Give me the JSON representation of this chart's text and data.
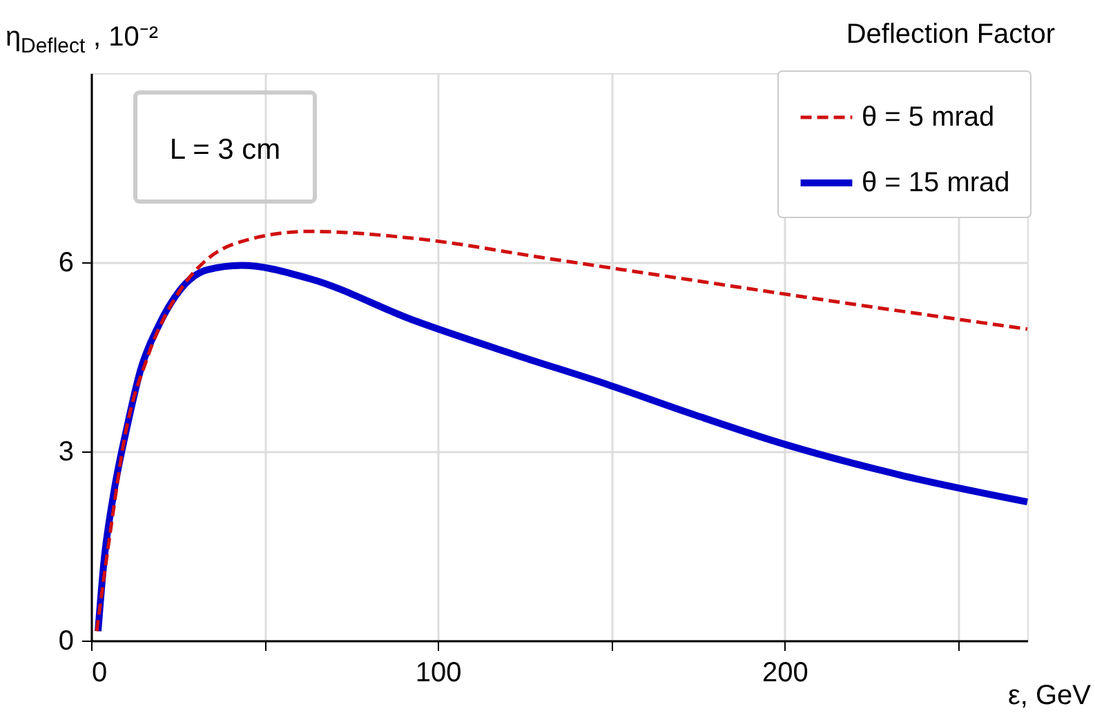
{
  "chart_data": {
    "type": "line",
    "title": "Deflection Factor",
    "ylabel": "η$_{Deflect}$, 10⁻²",
    "xlabel": "ε, GeV",
    "annotations": [
      "L = 3 cm"
    ],
    "xlim": [
      0,
      270
    ],
    "ylim": [
      0,
      9
    ],
    "xticks": [
      0,
      {
        "value": 50,
        "label": null
      },
      100,
      {
        "value": 150,
        "label": null
      },
      200,
      {
        "value": 250,
        "label": null
      }
    ],
    "yticks": [
      0,
      3,
      6
    ],
    "grid": true,
    "legend": "top right",
    "series": [
      {
        "name": "θ = 5 mrad",
        "color": "#d01010",
        "line_style": "dashed",
        "x": [
          1.6,
          5.6,
          9.6,
          16.3,
          25,
          33.5,
          43.4,
          63,
          93,
          133,
          173,
          213,
          270
        ],
        "values": [
          0.15,
          1.75,
          3.2,
          4.5,
          5.5,
          6.05,
          6.33,
          6.49,
          6.38,
          6.05,
          5.72,
          5.39,
          4.94
        ]
      },
      {
        "name": "θ = 15 mrad",
        "color": "#0000cc",
        "line_style": "solid",
        "x": [
          2,
          3.6,
          6.4,
          10.4,
          14.3,
          19.5,
          25.5,
          33.5,
          43.4,
          63,
          93,
          123,
          149,
          173,
          199,
          233,
          270
        ],
        "values": [
          0.15,
          1.2,
          2.3,
          3.4,
          4.3,
          5.0,
          5.55,
          5.88,
          5.95,
          5.74,
          5.08,
          4.52,
          4.06,
          3.6,
          3.13,
          2.63,
          2.2
        ]
      }
    ]
  }
}
